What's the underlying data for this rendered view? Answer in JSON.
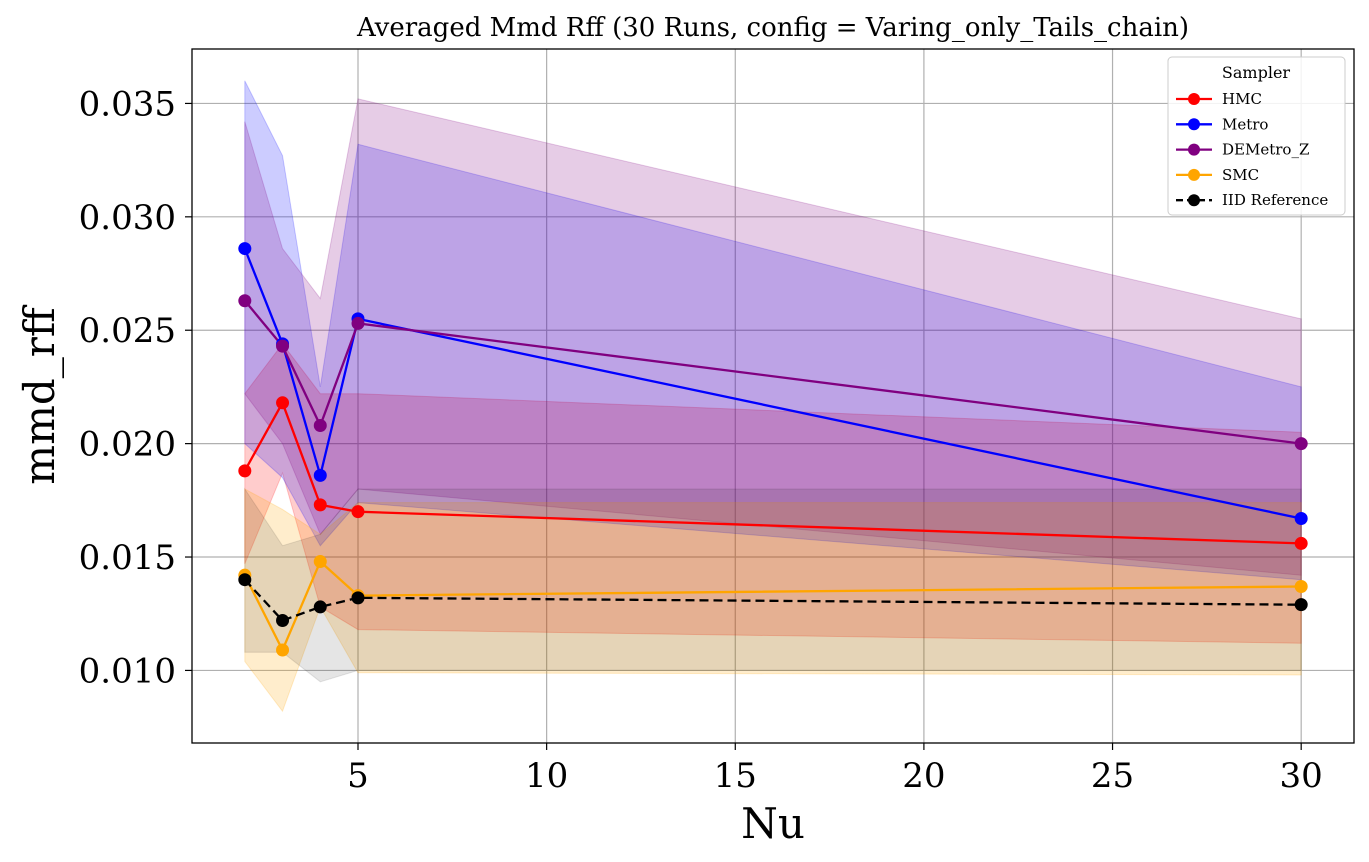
{
  "chart_data": {
    "type": "line",
    "title": "Averaged Mmd Rff (30 Runs, config = Varing_only_Tails_chain)",
    "xlabel": "Nu",
    "ylabel": "mmd_rff",
    "x": [
      2,
      3,
      4,
      5,
      30
    ],
    "xlim": [
      0.6,
      31.4
    ],
    "ylim": [
      0.0068,
      0.0374
    ],
    "xticks": [
      5,
      10,
      15,
      20,
      25,
      30
    ],
    "yticks": [
      0.01,
      0.015,
      0.02,
      0.025,
      0.03,
      0.035
    ],
    "ytick_labels": [
      "0.010",
      "0.015",
      "0.020",
      "0.025",
      "0.030",
      "0.035"
    ],
    "grid": true,
    "legend": {
      "title": "Sampler",
      "position": "top-right"
    },
    "series": [
      {
        "name": "HMC",
        "color": "#ff0000",
        "style": "solid",
        "band_alpha": 0.2,
        "values": [
          0.0188,
          0.0218,
          0.0173,
          0.017,
          0.0156
        ],
        "upper": [
          0.0222,
          0.0244,
          0.0222,
          0.0222,
          0.0205
        ],
        "lower": [
          0.0147,
          0.0187,
          0.0128,
          0.0118,
          0.0112
        ]
      },
      {
        "name": "Metro",
        "color": "#0000ff",
        "style": "solid",
        "band_alpha": 0.2,
        "values": [
          0.0286,
          0.0244,
          0.0186,
          0.0255,
          0.0167
        ],
        "upper": [
          0.036,
          0.0327,
          0.0225,
          0.0332,
          0.0225
        ],
        "lower": [
          0.02,
          0.0185,
          0.0155,
          0.0174,
          0.014
        ]
      },
      {
        "name": "DEMetro_Z",
        "color": "#800080",
        "style": "solid",
        "band_alpha": 0.2,
        "values": [
          0.0263,
          0.0243,
          0.0208,
          0.0253,
          0.02
        ],
        "upper": [
          0.0342,
          0.0286,
          0.0264,
          0.0352,
          0.0255
        ],
        "lower": [
          0.0222,
          0.02,
          0.016,
          0.018,
          0.0142
        ]
      },
      {
        "name": "SMC",
        "color": "#ffa500",
        "style": "solid",
        "band_alpha": 0.2,
        "values": [
          0.0142,
          0.0109,
          0.0148,
          0.0133,
          0.0137
        ],
        "upper": [
          0.018,
          0.0171,
          0.016,
          0.0174,
          0.0174
        ],
        "lower": [
          0.0104,
          0.0082,
          0.0128,
          0.0099,
          0.0098
        ]
      },
      {
        "name": "IID Reference",
        "color": "#000000",
        "style": "dashed",
        "band_alpha": 0.1,
        "values": [
          0.014,
          0.0122,
          0.0128,
          0.0132,
          0.0129
        ],
        "upper": [
          0.018,
          0.0155,
          0.016,
          0.018,
          0.018
        ],
        "lower": [
          0.0108,
          0.0108,
          0.0095,
          0.01,
          0.01
        ]
      }
    ]
  }
}
